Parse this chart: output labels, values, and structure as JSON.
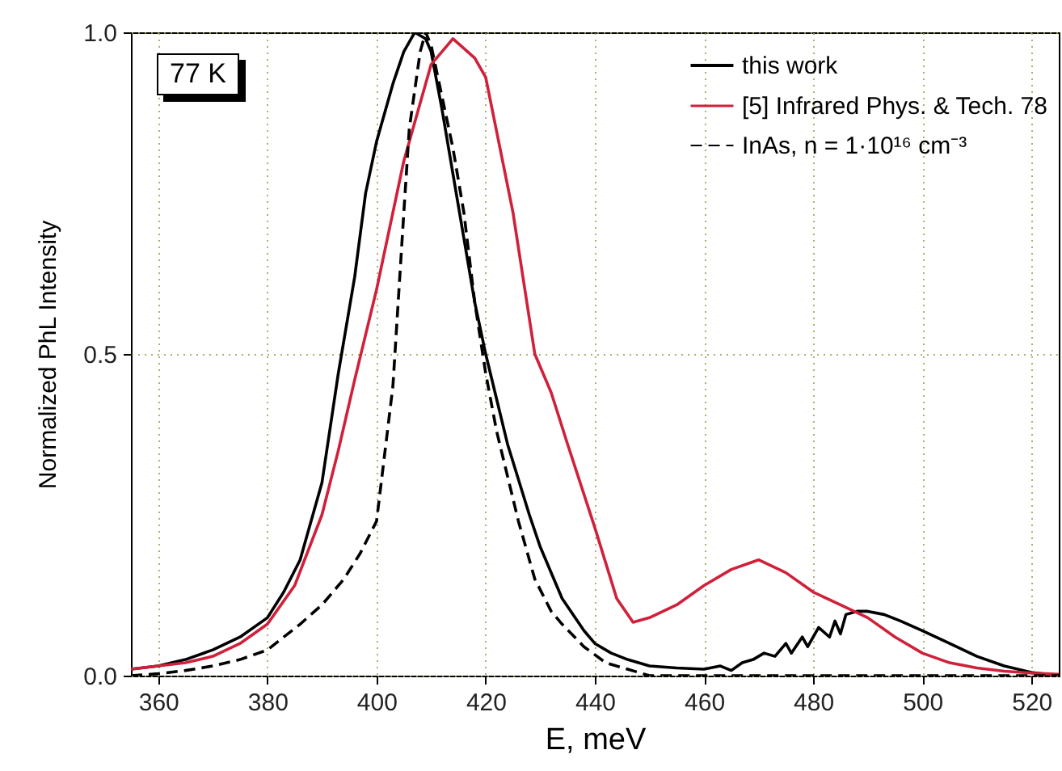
{
  "chart_data": {
    "type": "line",
    "xlabel": "E, meV",
    "ylabel": "Normalized PhL Intensity",
    "annotations": [
      "77 K"
    ],
    "xlim": [
      355,
      525
    ],
    "xticks": [
      360,
      380,
      400,
      420,
      440,
      460,
      480,
      500,
      520
    ],
    "ylim": [
      0,
      1.0
    ],
    "yticks": [
      {
        "value": 0,
        "label": "0.0"
      },
      {
        "value": 0.5,
        "label": "0.5"
      },
      {
        "value": 1.0,
        "label": "1.0"
      }
    ],
    "grid": true,
    "legend": "top right",
    "series": [
      {
        "name": "this work",
        "color": "#000000",
        "line_style": "solid",
        "x": [
          355,
          360,
          365,
          370,
          375,
          380,
          383,
          386,
          390,
          393,
          396,
          398,
          400,
          403,
          405,
          407,
          409,
          410,
          412,
          414,
          416,
          418,
          420,
          422,
          424,
          428,
          430,
          434,
          438,
          440,
          443,
          446,
          450,
          455,
          460,
          463,
          465,
          467,
          469,
          471,
          473,
          475,
          476,
          478,
          479,
          481,
          483,
          484,
          485,
          486,
          488,
          490,
          493,
          496,
          500,
          505,
          510,
          515,
          520,
          525
        ],
        "values": [
          0.01,
          0.015,
          0.025,
          0.04,
          0.06,
          0.09,
          0.13,
          0.18,
          0.3,
          0.47,
          0.62,
          0.75,
          0.83,
          0.92,
          0.97,
          1.0,
          0.99,
          0.97,
          0.88,
          0.78,
          0.68,
          0.58,
          0.5,
          0.43,
          0.36,
          0.25,
          0.2,
          0.12,
          0.07,
          0.05,
          0.035,
          0.025,
          0.015,
          0.012,
          0.01,
          0.015,
          0.008,
          0.02,
          0.025,
          0.035,
          0.03,
          0.05,
          0.035,
          0.06,
          0.045,
          0.075,
          0.06,
          0.085,
          0.065,
          0.095,
          0.1,
          0.1,
          0.095,
          0.085,
          0.07,
          0.05,
          0.03,
          0.015,
          0.005,
          0.0
        ]
      },
      {
        "name": "[5] Infrared Phys. & Tech. 78",
        "color": "#d0203a",
        "line_style": "solid",
        "x": [
          355,
          360,
          365,
          370,
          375,
          380,
          385,
          390,
          393,
          396,
          400,
          405,
          410,
          414,
          418,
          420,
          425,
          429,
          432,
          435,
          440,
          444,
          447,
          450,
          455,
          460,
          465,
          470,
          475,
          480,
          485,
          490,
          495,
          500,
          505,
          510,
          515,
          520,
          525
        ],
        "values": [
          0.01,
          0.015,
          0.02,
          0.03,
          0.05,
          0.08,
          0.14,
          0.25,
          0.35,
          0.46,
          0.6,
          0.8,
          0.95,
          0.99,
          0.96,
          0.93,
          0.72,
          0.5,
          0.44,
          0.36,
          0.23,
          0.12,
          0.083,
          0.09,
          0.11,
          0.14,
          0.165,
          0.18,
          0.16,
          0.13,
          0.11,
          0.09,
          0.06,
          0.035,
          0.02,
          0.012,
          0.007,
          0.004,
          0.002
        ]
      },
      {
        "name": "InAs, n = 1·10¹⁶ cm⁻³",
        "color": "#000000",
        "line_style": "dashed",
        "x": [
          355,
          360,
          365,
          370,
          375,
          380,
          386,
          390,
          394,
          397,
          400,
          403,
          405,
          406,
          408,
          409,
          410,
          412,
          414,
          416,
          418,
          420,
          422,
          424,
          426,
          429,
          432,
          434,
          438,
          442,
          446,
          450,
          460,
          480,
          500,
          525
        ],
        "values": [
          0.0,
          0.003,
          0.008,
          0.015,
          0.025,
          0.04,
          0.08,
          0.11,
          0.15,
          0.19,
          0.24,
          0.45,
          0.72,
          0.85,
          0.97,
          1.0,
          0.98,
          0.9,
          0.82,
          0.72,
          0.58,
          0.47,
          0.38,
          0.31,
          0.24,
          0.15,
          0.1,
          0.08,
          0.045,
          0.02,
          0.01,
          0.0,
          0.0,
          0.0,
          0.0,
          0.0
        ]
      }
    ]
  }
}
